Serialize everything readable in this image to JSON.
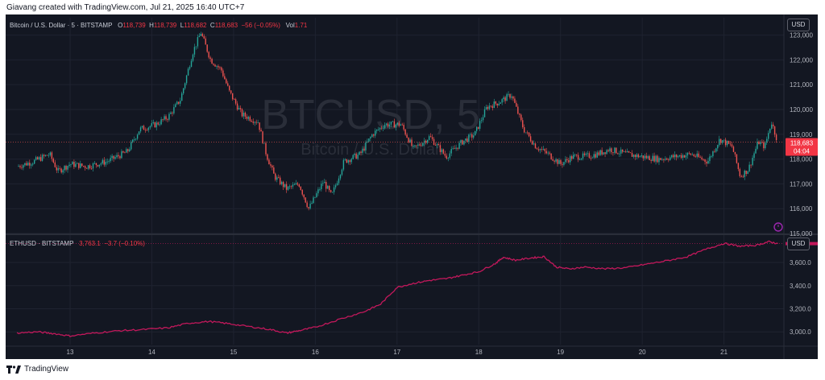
{
  "header": {
    "text": "Giavang created with TradingView.com, Jul 21, 2025 16:40 UTC+7"
  },
  "top_pane": {
    "symbol": "Bitcoin / U.S. Dollar · 5 · BITSTAMP",
    "o_label": "O",
    "o": "118,739",
    "h_label": "H",
    "h": "118,739",
    "l_label": "L",
    "l": "118,682",
    "c_label": "C",
    "c": "118,683",
    "change": "−56 (−0.05%)",
    "vol_label": "Vol",
    "vol": "1.71",
    "currency": "USD",
    "price_badge": "118,683",
    "countdown": "04:04",
    "watermark_symbol": "BTCUSD, 5",
    "watermark_name": "Bitcoin / U.S. Dollar"
  },
  "bottom_pane": {
    "symbol": "ETHUSD · BITSTAMP",
    "last": "3,763.1",
    "change": "−3.7 (−0.10%)",
    "currency": "USD"
  },
  "footer": {
    "brand": "TradingView"
  },
  "colors": {
    "up": "#26a69a",
    "down": "#ef5350",
    "eth_line": "#c2185b",
    "bg": "#131722",
    "badge": "#f23645"
  },
  "chart_data": [
    {
      "type": "candlestick",
      "title": "Bitcoin / U.S. Dollar · 5 · BITSTAMP",
      "x_ticks": [
        "13",
        "14",
        "15",
        "16",
        "17",
        "18",
        "19",
        "20",
        "21"
      ],
      "y_ticks": [
        "115,000",
        "116,000",
        "117,000",
        "118,000",
        "119,000",
        "120,000",
        "121,000",
        "122,000",
        "123,000"
      ],
      "ylim": [
        115000,
        123700
      ],
      "close_path": [
        [
          12.35,
          117700
        ],
        [
          12.55,
          117900
        ],
        [
          12.75,
          118200
        ],
        [
          12.85,
          117500
        ],
        [
          13.0,
          117800
        ],
        [
          13.2,
          117700
        ],
        [
          13.45,
          117900
        ],
        [
          13.7,
          118300
        ],
        [
          13.85,
          119200
        ],
        [
          14.05,
          119400
        ],
        [
          14.2,
          119700
        ],
        [
          14.35,
          120400
        ],
        [
          14.5,
          122300
        ],
        [
          14.6,
          123100
        ],
        [
          14.72,
          122000
        ],
        [
          14.85,
          121600
        ],
        [
          14.95,
          120700
        ],
        [
          15.1,
          119800
        ],
        [
          15.3,
          119500
        ],
        [
          15.4,
          118200
        ],
        [
          15.5,
          117300
        ],
        [
          15.65,
          116800
        ],
        [
          15.8,
          117000
        ],
        [
          15.92,
          116000
        ],
        [
          16.1,
          117100
        ],
        [
          16.2,
          116500
        ],
        [
          16.35,
          117900
        ],
        [
          16.55,
          118200
        ],
        [
          16.7,
          119000
        ],
        [
          16.85,
          119400
        ],
        [
          17.05,
          119400
        ],
        [
          17.2,
          118400
        ],
        [
          17.4,
          118900
        ],
        [
          17.6,
          118100
        ],
        [
          17.8,
          118700
        ],
        [
          17.95,
          119000
        ],
        [
          18.1,
          120100
        ],
        [
          18.25,
          120300
        ],
        [
          18.4,
          120600
        ],
        [
          18.55,
          119200
        ],
        [
          18.7,
          118500
        ],
        [
          18.85,
          118200
        ],
        [
          19.0,
          117800
        ],
        [
          19.15,
          118100
        ],
        [
          19.3,
          118100
        ],
        [
          19.45,
          118200
        ],
        [
          19.6,
          118400
        ],
        [
          19.8,
          118200
        ],
        [
          20.0,
          118100
        ],
        [
          20.2,
          118000
        ],
        [
          20.4,
          118100
        ],
        [
          20.6,
          118200
        ],
        [
          20.8,
          117900
        ],
        [
          20.95,
          118800
        ],
        [
          21.1,
          118500
        ],
        [
          21.2,
          117300
        ],
        [
          21.3,
          117600
        ],
        [
          21.42,
          118700
        ],
        [
          21.5,
          118500
        ],
        [
          21.58,
          119500
        ],
        [
          21.66,
          118683
        ]
      ],
      "high": 123200,
      "low": 115900,
      "last_price": 118683
    },
    {
      "type": "line",
      "title": "ETHUSD · BITSTAMP",
      "y_ticks": [
        "3,000.0",
        "3,200.0",
        "3,400.0",
        "3,600.0"
      ],
      "ylim": [
        2890,
        3830
      ],
      "x": [
        12.35,
        12.6,
        12.8,
        13.0,
        13.3,
        13.6,
        13.9,
        14.2,
        14.45,
        14.7,
        14.95,
        15.2,
        15.45,
        15.65,
        15.8,
        16.0,
        16.3,
        16.6,
        16.8,
        17.0,
        17.2,
        17.4,
        17.6,
        17.8,
        18.0,
        18.2,
        18.3,
        18.45,
        18.65,
        18.8,
        18.95,
        19.1,
        19.3,
        19.55,
        19.8,
        20.05,
        20.3,
        20.55,
        20.8,
        21.0,
        21.2,
        21.4,
        21.55,
        21.66
      ],
      "values": [
        2990,
        3000,
        2985,
        2965,
        2990,
        3010,
        3020,
        3035,
        3075,
        3090,
        3070,
        3045,
        3020,
        2990,
        3010,
        3040,
        3110,
        3175,
        3240,
        3385,
        3420,
        3445,
        3460,
        3490,
        3520,
        3590,
        3645,
        3620,
        3640,
        3650,
        3560,
        3545,
        3560,
        3545,
        3555,
        3585,
        3615,
        3650,
        3720,
        3765,
        3740,
        3750,
        3780,
        3763.1
      ]
    }
  ]
}
